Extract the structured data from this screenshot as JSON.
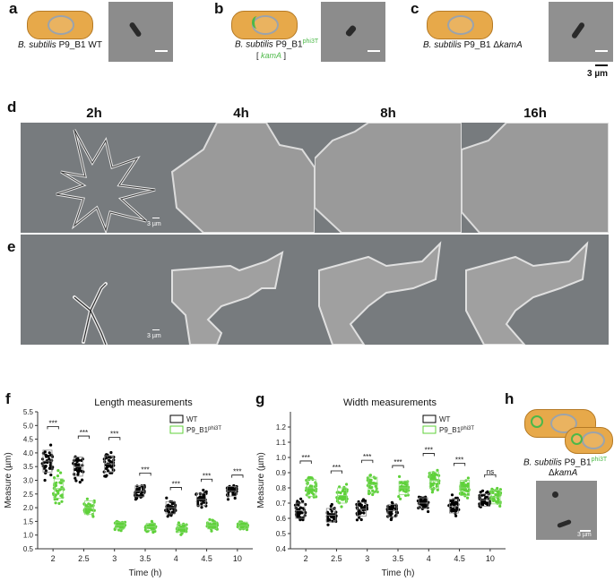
{
  "panels": {
    "a": {
      "letter": "a",
      "caption_species": "B. subtilis",
      "caption_strain": " P9_B1 WT"
    },
    "b": {
      "letter": "b",
      "caption_species": "B. subtilis",
      "caption_strain": " P9_B1",
      "superscript": "phi3T",
      "gene": "kamA",
      "bracket_open": "[ ",
      "bracket_close": " ]"
    },
    "c": {
      "letter": "c",
      "caption_species": "B. subtilis",
      "caption_strain": " P9_B1 Δ",
      "gene": "kamA",
      "scale_label": "3 µm"
    },
    "d": {
      "letter": "d",
      "scale_label": "3 µm"
    },
    "e": {
      "letter": "e",
      "scale_label": "3 µm"
    },
    "h": {
      "letter": "h",
      "caption_species": "B. subtilis",
      "caption_strain": " P9_B1",
      "superscript": "phi3T",
      "caption_line2_prefix": "Δ",
      "gene": "kamA",
      "scale_label": "3 µm"
    }
  },
  "time_headers": [
    "2h",
    "4h",
    "8h",
    "16h"
  ],
  "colors": {
    "wt": "#000000",
    "mutant": "#5fd13a",
    "cell_fill": "#e7a94a",
    "cell_border": "#b57a25",
    "nucleoid": "#9aa3ad",
    "phage": "#4cb848"
  },
  "chart_data": [
    {
      "panel": "f",
      "type": "scatter",
      "title": "Length measurements",
      "xlabel": "Time (h)",
      "ylabel": "Measure (µm)",
      "categories": [
        "2",
        "2.5",
        "3",
        "3.5",
        "4",
        "4.5",
        "10"
      ],
      "ylim": [
        0.5,
        5.5
      ],
      "yticks": [
        "0.5",
        "1.0",
        "1.5",
        "2.0",
        "2.5",
        "3.0",
        "3.5",
        "4.0",
        "4.5",
        "5.0",
        "5.5"
      ],
      "legend": {
        "placement": "top-right",
        "entries": [
          "WT",
          "P9_B1"
        ],
        "entry2_superscript": "phi3T"
      },
      "series": [
        {
          "name": "WT",
          "color": "#000000",
          "means": [
            3.7,
            3.5,
            3.6,
            2.6,
            2.0,
            2.3,
            2.6
          ],
          "spread": [
            0.8,
            0.7,
            0.6,
            0.4,
            0.45,
            0.45,
            0.35
          ]
        },
        {
          "name": "P9_B1phi3T",
          "color": "#5fd13a",
          "means": [
            2.7,
            2.0,
            1.35,
            1.3,
            1.25,
            1.35,
            1.35
          ],
          "spread": [
            0.7,
            0.5,
            0.25,
            0.25,
            0.3,
            0.25,
            0.25
          ]
        }
      ],
      "significance": [
        "***",
        "***",
        "***",
        "***",
        "***",
        "***",
        "***"
      ]
    },
    {
      "panel": "g",
      "type": "scatter",
      "title": "Width measurements",
      "xlabel": "Time (h)",
      "ylabel": "Measure (µm)",
      "categories": [
        "2",
        "2.5",
        "3",
        "3.5",
        "4",
        "4.5",
        "10"
      ],
      "ylim": [
        0.4,
        1.3
      ],
      "yticks": [
        "0.4",
        "0.5",
        "0.6",
        "0.7",
        "0.8",
        "0.9",
        "1.0",
        "1.1",
        "1.2"
      ],
      "legend": {
        "placement": "top-right",
        "entries": [
          "WT",
          "P9_B1"
        ],
        "entry2_superscript": "phi3T"
      },
      "series": [
        {
          "name": "WT",
          "color": "#000000",
          "means": [
            0.65,
            0.62,
            0.66,
            0.65,
            0.7,
            0.68,
            0.72
          ],
          "spread": [
            0.1,
            0.09,
            0.09,
            0.08,
            0.07,
            0.09,
            0.08
          ]
        },
        {
          "name": "P9_B1phi3T",
          "color": "#5fd13a",
          "means": [
            0.8,
            0.75,
            0.82,
            0.8,
            0.85,
            0.8,
            0.74
          ],
          "spread": [
            0.11,
            0.1,
            0.1,
            0.09,
            0.11,
            0.1,
            0.09
          ]
        }
      ],
      "significance": [
        "***",
        "***",
        "***",
        "***",
        "***",
        "***",
        "ns"
      ]
    }
  ]
}
